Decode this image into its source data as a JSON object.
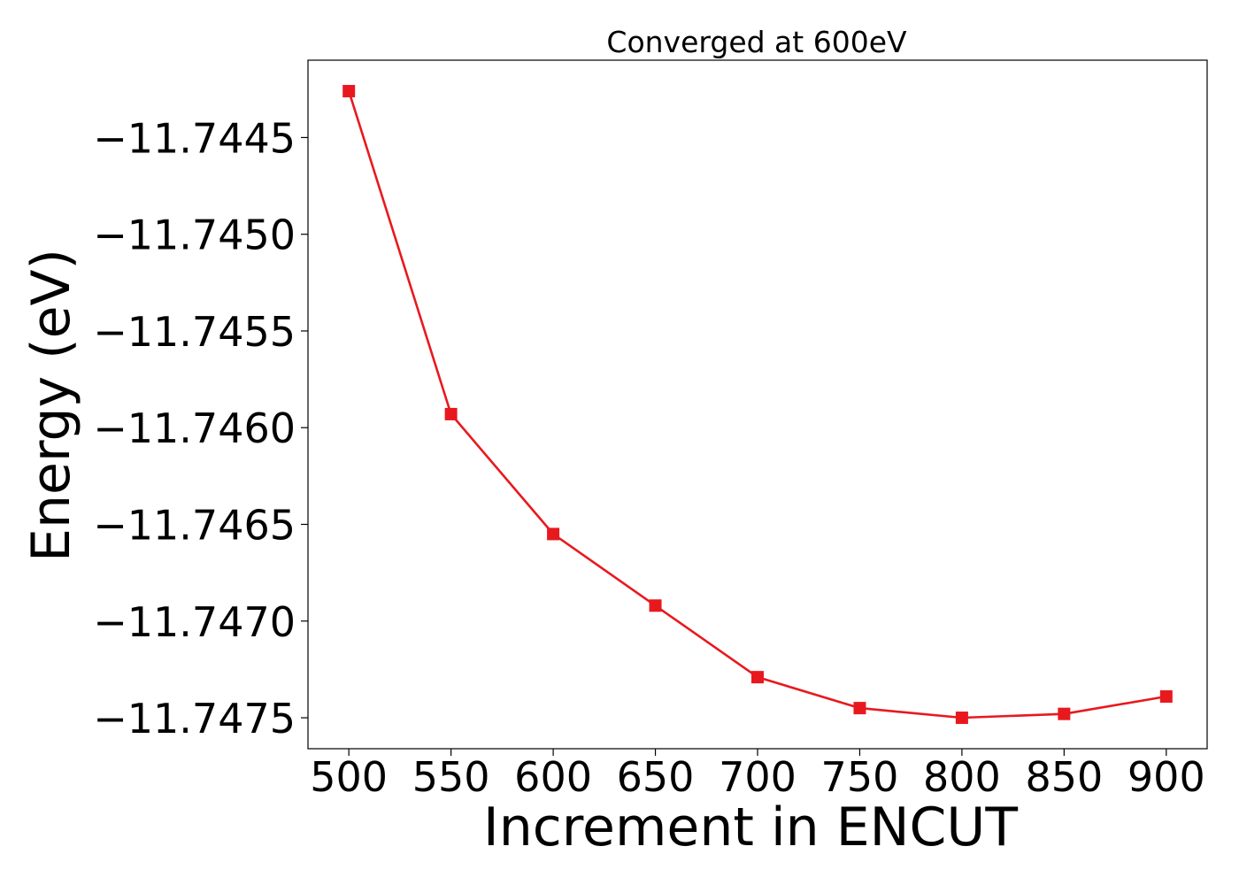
{
  "chart_data": {
    "type": "line",
    "title": "Converged at 600eV",
    "xlabel": "Increment in ENCUT",
    "ylabel": "Energy (eV)",
    "x": [
      500,
      550,
      600,
      650,
      700,
      750,
      800,
      850,
      900
    ],
    "series": [
      {
        "values": [
          -11.74426,
          -11.74593,
          -11.74655,
          -11.74692,
          -11.74729,
          -11.74745,
          -11.7475,
          -11.74748,
          -11.74739
        ]
      }
    ],
    "xticks": [
      500,
      550,
      600,
      650,
      700,
      750,
      800,
      850,
      900
    ],
    "xtick_labels": [
      "500",
      "550",
      "600",
      "650",
      "700",
      "750",
      "800",
      "850",
      "900"
    ],
    "yticks": [
      -11.7445,
      -11.745,
      -11.7455,
      -11.746,
      -11.7465,
      -11.747,
      -11.7475
    ],
    "ytick_labels": [
      "−11.7445",
      "−11.7450",
      "−11.7455",
      "−11.7460",
      "−11.7465",
      "−11.7470",
      "−11.7475"
    ],
    "xlim": [
      480,
      920
    ],
    "ylim": [
      -11.74766,
      -11.7441
    ],
    "marker": "square",
    "grid": false,
    "colors": {
      "series": "#e8191e",
      "axes": "#000000",
      "background": "#ffffff"
    }
  }
}
